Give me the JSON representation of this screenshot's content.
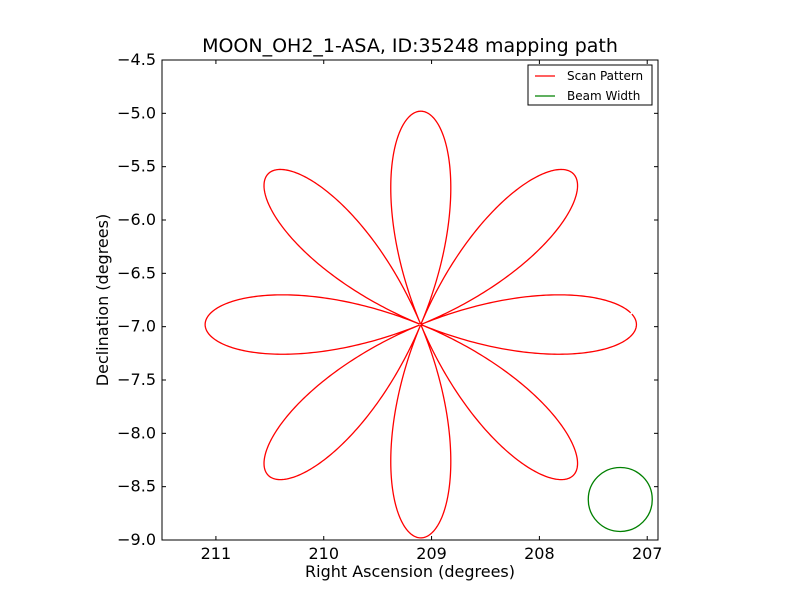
{
  "chart_data": {
    "type": "line",
    "title": "MOON_OH2_1-ASA, ID:35248 mapping path",
    "xlabel": "Right Ascension (degrees)",
    "ylabel": "Declination (degrees)",
    "xlim": [
      211.5,
      206.9
    ],
    "ylim": [
      -9.0,
      -4.5
    ],
    "x_reversed": true,
    "xticks": [
      211,
      210,
      209,
      208,
      207
    ],
    "xtick_labels": [
      "211",
      "210",
      "209",
      "208",
      "207"
    ],
    "yticks": [
      -4.5,
      -5.0,
      -5.5,
      -6.0,
      -6.5,
      -7.0,
      -7.5,
      -8.0,
      -8.5,
      -9.0
    ],
    "ytick_labels": [
      "−4.5",
      "−5.0",
      "−5.5",
      "−6.0",
      "−6.5",
      "−7.0",
      "−7.5",
      "−8.0",
      "−8.5",
      "−9.0"
    ],
    "legend_position": "top-right",
    "series": [
      {
        "name": "Scan Pattern",
        "color": "#ff0000",
        "shape": "rose curve, 8 petals",
        "center_ra": 209.1,
        "center_dec": -6.98,
        "petal_length_deg": 2.0,
        "start_ra": 210.92,
        "start_dec": -6.97
      },
      {
        "name": "Beam Width",
        "color": "#008000",
        "shape": "circle",
        "center_ra": 207.25,
        "center_dec": -8.62,
        "diameter_deg": 0.6
      }
    ]
  }
}
